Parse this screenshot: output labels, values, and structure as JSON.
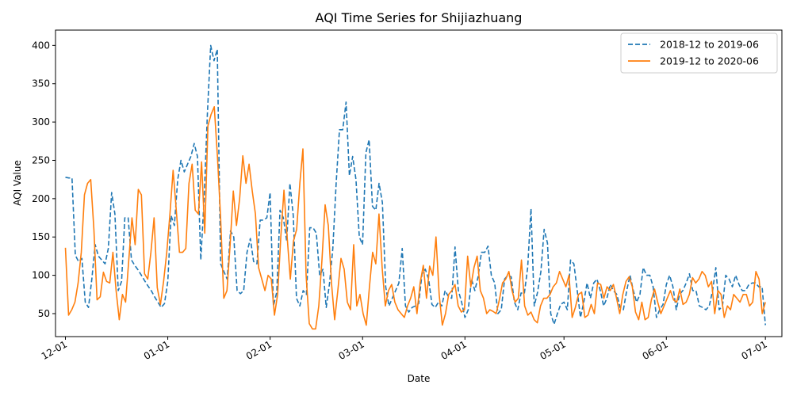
{
  "chart_data": {
    "type": "line",
    "title": "AQI Time Series for Shijiazhuang",
    "xlabel": "Date",
    "ylabel": "AQI Value",
    "x_axis": "month-day (Dec 1 through Jul 1)",
    "xlim_days": [
      -3,
      217
    ],
    "ylim": [
      20,
      420
    ],
    "yticks": [
      50,
      100,
      150,
      200,
      250,
      300,
      350,
      400
    ],
    "xticks": [
      {
        "label": "12-01",
        "day": 0
      },
      {
        "label": "01-01",
        "day": 31
      },
      {
        "label": "02-01",
        "day": 62
      },
      {
        "label": "03-01",
        "day": 90
      },
      {
        "label": "04-01",
        "day": 121
      },
      {
        "label": "05-01",
        "day": 151
      },
      {
        "label": "06-01",
        "day": 182
      },
      {
        "label": "07-01",
        "day": 212
      }
    ],
    "grid": false,
    "legend_position": "top-right",
    "series": [
      {
        "name": "2018-12 to 2019-06",
        "color": "#1f77b4",
        "style": "dashed",
        "values": [
          228,
          227,
          227,
          126,
          118,
          122,
          65,
          58,
          95,
          140,
          125,
          120,
          115,
          135,
          208,
          180,
          80,
          92,
          175,
          175,
          120,
          113,
          107,
          100,
          93,
          86,
          80,
          72,
          65,
          58,
          63,
          92,
          178,
          165,
          225,
          250,
          235,
          245,
          255,
          272,
          255,
          120,
          200,
          310,
          400,
          380,
          395,
          115,
          105,
          95,
          158,
          150,
          80,
          76,
          80,
          130,
          148,
          118,
          115,
          172,
          172,
          175,
          208,
          60,
          78,
          185,
          175,
          145,
          220,
          178,
          70,
          60,
          80,
          75,
          162,
          162,
          155,
          100,
          108,
          58,
          90,
          135,
          220,
          290,
          290,
          326,
          230,
          255,
          225,
          150,
          140,
          260,
          277,
          190,
          185,
          220,
          195,
          85,
          60,
          70,
          80,
          90,
          135,
          60,
          52,
          58,
          60,
          63,
          102,
          108,
          95,
          62,
          58,
          65,
          60,
          80,
          72,
          70,
          137,
          80,
          65,
          45,
          55,
          95,
          80,
          98,
          130,
          130,
          138,
          100,
          90,
          50,
          55,
          95,
          100,
          98,
          65,
          55,
          77,
          76,
          110,
          187,
          60,
          78,
          105,
          160,
          142,
          50,
          36,
          50,
          62,
          65,
          55,
          120,
          115,
          80,
          45,
          65,
          90,
          70,
          90,
          95,
          80,
          60,
          70,
          88,
          80,
          75,
          58,
          55,
          80,
          100,
          80,
          65,
          75,
          110,
          100,
          100,
          85,
          45,
          55,
          62,
          88,
          100,
          85,
          55,
          75,
          80,
          90,
          102,
          80,
          80,
          60,
          58,
          55,
          60,
          80,
          110,
          55,
          60,
          100,
          95,
          85,
          100,
          88,
          80,
          80,
          88,
          90,
          90,
          85,
          85,
          35
        ]
      },
      {
        "name": "2019-12 to 2020-06",
        "color": "#ff7f0e",
        "style": "solid",
        "values": [
          136,
          48,
          55,
          65,
          90,
          130,
          205,
          220,
          225,
          160,
          68,
          72,
          104,
          92,
          90,
          130,
          80,
          42,
          75,
          65,
          120,
          175,
          140,
          212,
          205,
          102,
          95,
          130,
          175,
          84,
          62,
          92,
          130,
          180,
          237,
          185,
          130,
          130,
          135,
          220,
          245,
          185,
          180,
          248,
          155,
          295,
          310,
          320,
          255,
          175,
          70,
          80,
          140,
          210,
          165,
          200,
          256,
          220,
          245,
          210,
          180,
          110,
          95,
          80,
          100,
          95,
          48,
          75,
          150,
          211,
          150,
          95,
          145,
          160,
          220,
          265,
          100,
          37,
          30,
          30,
          60,
          120,
          192,
          165,
          90,
          42,
          80,
          122,
          108,
          65,
          55,
          140,
          60,
          75,
          50,
          35,
          85,
          130,
          115,
          180,
          110,
          60,
          80,
          88,
          65,
          55,
          50,
          45,
          60,
          70,
          85,
          50,
          90,
          113,
          70,
          112,
          100,
          150,
          75,
          35,
          50,
          75,
          80,
          88,
          60,
          52,
          55,
          125,
          85,
          110,
          125,
          80,
          70,
          50,
          55,
          53,
          50,
          68,
          90,
          95,
          105,
          80,
          65,
          70,
          120,
          60,
          48,
          52,
          42,
          38,
          60,
          70,
          70,
          75,
          85,
          90,
          105,
          95,
          85,
          100,
          45,
          58,
          75,
          78,
          45,
          48,
          62,
          50,
          90,
          88,
          70,
          85,
          80,
          88,
          70,
          50,
          75,
          92,
          98,
          85,
          52,
          42,
          65,
          42,
          45,
          68,
          82,
          65,
          50,
          60,
          70,
          80,
          68,
          65,
          82,
          62,
          65,
          75,
          97,
          90,
          95,
          105,
          100,
          85,
          92,
          50,
          80,
          75,
          45,
          60,
          55,
          75,
          70,
          65,
          75,
          75,
          60,
          65,
          105,
          95,
          50,
          65
        ]
      }
    ]
  }
}
